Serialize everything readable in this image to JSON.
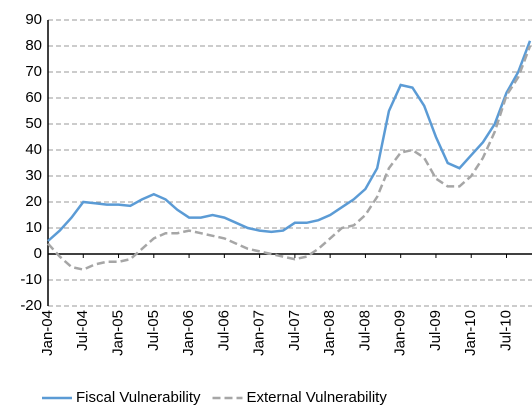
{
  "chart_data": {
    "type": "line",
    "categories": [
      "Jan-04",
      null,
      null,
      "Jul-04",
      null,
      null,
      "Jan-05",
      null,
      null,
      "Jul-05",
      null,
      null,
      "Jan-06",
      null,
      null,
      "Jul-06",
      null,
      null,
      "Jan-07",
      null,
      null,
      "Jul-07",
      null,
      null,
      "Jan-08",
      null,
      null,
      "Jul-08",
      null,
      null,
      "Jan-09",
      null,
      null,
      "Jul-09",
      null,
      null,
      "Jan-10",
      null,
      null,
      "Jul-10",
      null,
      null
    ],
    "series": [
      {
        "name": "Fiscal Vulnerability",
        "color": "#5b9bd5",
        "dash": false,
        "values": [
          5,
          9,
          14,
          20,
          19.5,
          19,
          19,
          18.5,
          21,
          23,
          21,
          17,
          14,
          14,
          15,
          14,
          12,
          10,
          9,
          8.5,
          9,
          12,
          12,
          13,
          15,
          18,
          21,
          25,
          33,
          55,
          65,
          64,
          57,
          45,
          35,
          33,
          38,
          43,
          50,
          62,
          70,
          82
        ]
      },
      {
        "name": "External Vulnerability",
        "color": "#a6a6a6",
        "dash": true,
        "values": [
          4,
          -1,
          -5,
          -6,
          -4,
          -3,
          -3,
          -2,
          2,
          6,
          8,
          8,
          9,
          8,
          7,
          6,
          4,
          2,
          1,
          0,
          -1,
          -2,
          -1,
          2,
          6,
          10,
          11,
          15,
          22,
          33,
          39,
          40,
          37,
          29,
          26,
          26,
          30,
          37,
          47,
          61,
          68,
          80
        ]
      }
    ],
    "ylim": [
      -20,
      90
    ],
    "yticks": [
      -20,
      -10,
      0,
      10,
      20,
      30,
      40,
      50,
      60,
      70,
      80,
      90
    ],
    "grid": true
  }
}
